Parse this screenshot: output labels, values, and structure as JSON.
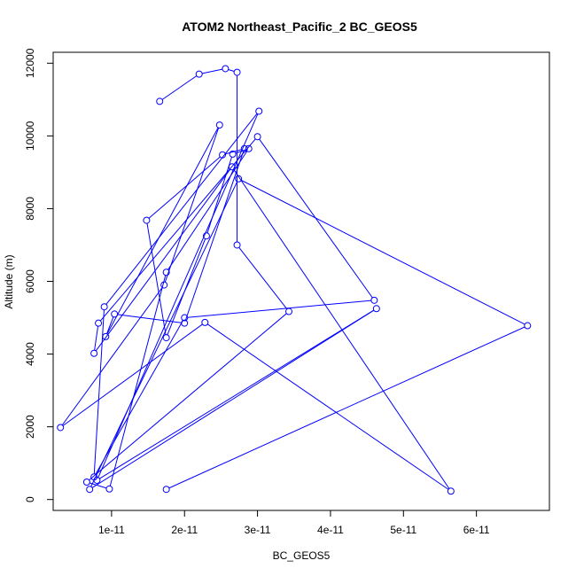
{
  "chart_data": {
    "type": "line",
    "title": "ATOM2 Northeast_Pacific_2 BC_GEOS5",
    "xlabel": "BC_GEOS5",
    "ylabel": "Altitude (m)",
    "xlim": [
      2e-12,
      7e-11
    ],
    "ylim": [
      -300,
      12300
    ],
    "x_ticks": [
      {
        "value": 1e-11,
        "label": "1e-11"
      },
      {
        "value": 2e-11,
        "label": "2e-11"
      },
      {
        "value": 3e-11,
        "label": "3e-11"
      },
      {
        "value": 4e-11,
        "label": "4e-11"
      },
      {
        "value": 5e-11,
        "label": "5e-11"
      },
      {
        "value": 6e-11,
        "label": "6e-11"
      }
    ],
    "y_ticks": [
      {
        "value": 0,
        "label": "0"
      },
      {
        "value": 2000,
        "label": "2000"
      },
      {
        "value": 4000,
        "label": "4000"
      },
      {
        "value": 6000,
        "label": "6000"
      },
      {
        "value": 8000,
        "label": "8000"
      },
      {
        "value": 10000,
        "label": "10000"
      },
      {
        "value": 12000,
        "label": "12000"
      }
    ],
    "grid": false,
    "line_color": "#0000ff",
    "series": [
      {
        "x": [
          1.66e-11,
          2.2e-11,
          2.56e-11,
          2.72e-11,
          2.72e-11,
          3.43e-11,
          6.6e-12,
          9.7e-12,
          1.75e-11,
          2.88e-11,
          2.66e-11,
          2.3e-11,
          1.75e-11,
          1.48e-11,
          2.52e-11,
          2.82e-11,
          2e-11,
          1.04e-11,
          9.2e-12,
          2.48e-11,
          1.72e-11,
          3e-12,
          2.28e-11,
          5.65e-11,
          2.65e-11,
          7.6e-12,
          8.2e-12,
          3e-11,
          4.6e-11,
          2e-11,
          7.6e-12,
          9e-12,
          3.02e-11,
          8e-12,
          4.63e-11,
          7e-12,
          2.74e-11,
          6.7e-11,
          1.75e-11
        ],
        "y": [
          10950,
          11700,
          11850,
          11750,
          7000,
          5170,
          480,
          290,
          6250,
          9650,
          9500,
          7250,
          4450,
          7680,
          9480,
          9650,
          4850,
          5100,
          4480,
          10300,
          5900,
          1980,
          4870,
          230,
          9150,
          4020,
          4850,
          9980,
          5480,
          5000,
          620,
          5300,
          10680,
          530,
          5250,
          280,
          8820,
          4780,
          280
        ]
      }
    ]
  }
}
